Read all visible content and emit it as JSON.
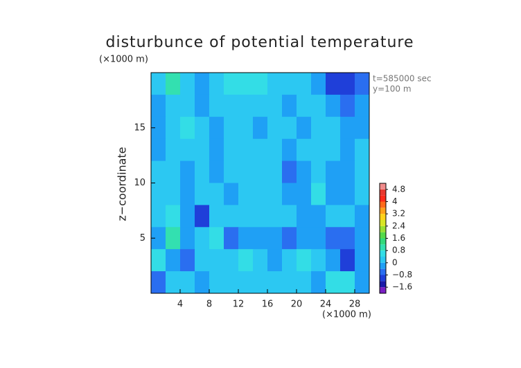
{
  "chart_data": {
    "type": "heatmap",
    "title": "disturbunce of potential temperature",
    "y_unit": "(×1000 m)",
    "x_unit": "(×1000 m)",
    "y_label": "z−coordinate",
    "annotations": [
      "t=585000 sec",
      "y=100 m"
    ],
    "xlim": [
      0,
      30
    ],
    "ylim": [
      0,
      20
    ],
    "xticks": [
      4,
      8,
      12,
      16,
      20,
      24,
      28
    ],
    "yticks": [
      5,
      10,
      15
    ],
    "x": [
      1,
      3,
      5,
      7,
      9,
      11,
      13,
      15,
      17,
      19,
      21,
      23,
      25,
      27,
      29
    ],
    "y": [
      19,
      17,
      15,
      13,
      11,
      9,
      7,
      5,
      3,
      1
    ],
    "z": [
      [
        0,
        0.8,
        0,
        -0.2,
        0.2,
        0.4,
        0.6,
        0.6,
        0.2,
        0,
        0,
        -0.2,
        -1.0,
        -1.2,
        -0.8
      ],
      [
        -0.2,
        0.2,
        0.2,
        -0.4,
        0,
        0.2,
        0.2,
        0.2,
        0,
        -0.2,
        0,
        0,
        -0.4,
        -0.6,
        -0.4
      ],
      [
        -0.4,
        0.2,
        0.4,
        0,
        -0.2,
        0.2,
        0,
        -0.2,
        0,
        0.2,
        -0.2,
        0,
        0,
        -0.4,
        -0.2
      ],
      [
        -0.2,
        0.2,
        0.2,
        0.2,
        -0.4,
        0.2,
        0,
        0,
        0.2,
        -0.2,
        0,
        0.2,
        0,
        -0.4,
        0
      ],
      [
        0,
        0.2,
        -0.2,
        0.2,
        -0.4,
        0.2,
        0,
        0.2,
        0,
        -0.6,
        -0.4,
        0.2,
        -0.2,
        -0.4,
        0
      ],
      [
        0.2,
        0,
        -0.4,
        0.2,
        0,
        -0.4,
        0,
        0.2,
        0.2,
        -0.4,
        -0.2,
        0.4,
        -0.2,
        -0.4,
        0
      ],
      [
        0.2,
        0.4,
        -0.2,
        -1.0,
        0.2,
        0.2,
        0,
        0,
        0.2,
        0,
        -0.2,
        -0.4,
        0,
        0,
        -0.2
      ],
      [
        -0.2,
        0.8,
        -0.4,
        0,
        0.4,
        -0.6,
        -0.4,
        -0.2,
        -0.4,
        -0.6,
        -0.2,
        -0.4,
        -0.6,
        -0.8,
        -0.4
      ],
      [
        0.6,
        -0.2,
        -0.6,
        0,
        0.2,
        0,
        0.6,
        0.2,
        -0.4,
        0,
        0.6,
        0.2,
        -0.4,
        -1.0,
        -0.4
      ],
      [
        -0.6,
        0,
        0.2,
        -0.2,
        0.2,
        0.2,
        0.2,
        0.2,
        0,
        0.2,
        0,
        -0.2,
        0.4,
        0.6,
        -0.2
      ]
    ],
    "levels": [
      -2,
      -1.6,
      -1.2,
      -0.8,
      -0.4,
      0,
      0.4,
      0.8,
      1.2,
      1.6,
      2,
      2.4,
      2.8,
      3.2,
      3.6,
      4,
      4.4,
      4.8,
      5.2
    ],
    "colors": [
      "#7a1fc4",
      "#1a1aa8",
      "#1f3fd9",
      "#2a6ef0",
      "#1fa0f5",
      "#2cc8f2",
      "#33dde6",
      "#33e0b0",
      "#33d97a",
      "#55d94a",
      "#99e033",
      "#d9e626",
      "#ffd21a",
      "#ffa01a",
      "#ff6a1a",
      "#ff2a1a",
      "#e8382e",
      "#f08c8c"
    ],
    "cbar_ticks": [
      4.8,
      4,
      3.2,
      2.4,
      1.6,
      0.8,
      0,
      {
        "value": -0.8,
        "label": "−0.8"
      },
      {
        "value": -1.6,
        "label": "−1.6"
      }
    ]
  }
}
